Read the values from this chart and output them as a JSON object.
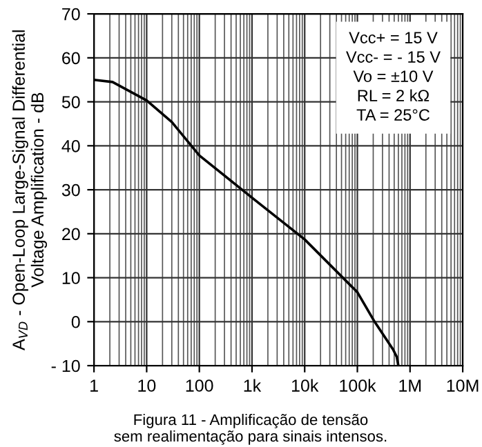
{
  "chart_data": {
    "type": "line",
    "xlabel": null,
    "ylabel": "A$_{VD}$ - Open-Loop Large-Signal Differential\nVoltage Amplification - dB",
    "x": [
      1,
      2.25,
      10,
      30,
      100,
      1000,
      10000,
      100000,
      212000,
      475000,
      560000,
      600000
    ],
    "series": [
      {
        "color": "#000000",
        "values": [
          55,
          54.5,
          50.3,
          45.4,
          37.8,
          28.2,
          18.7,
          6.7,
          0,
          -6.3,
          -8,
          -10
        ]
      }
    ],
    "log": "x",
    "xlim": [
      1,
      10000000
    ],
    "xticks": [
      1,
      10,
      100,
      {
        "value": 1000,
        "label": "1k"
      },
      {
        "value": 10000,
        "label": "10k"
      },
      {
        "value": 100000,
        "label": "100k"
      },
      {
        "value": 1000000,
        "label": "1M"
      },
      {
        "value": 10000000,
        "label": "10M"
      }
    ],
    "ylim": [
      -10,
      70
    ],
    "yticks": [
      {
        "value": -10,
        "label": "- 10"
      },
      0,
      10,
      20,
      30,
      40,
      50,
      60,
      70
    ],
    "grid": true,
    "marker": "none",
    "line_style": "solid",
    "annotations": [
      "Vcc+ = 15 V\nVcc- = - 15 V\nVo = ±10 V\nRL = 2 kΩ\nTA = 25°C",
      "Figura 11 - Amplificação de tensão\nsem realimentação para sinais intensos."
    ]
  }
}
